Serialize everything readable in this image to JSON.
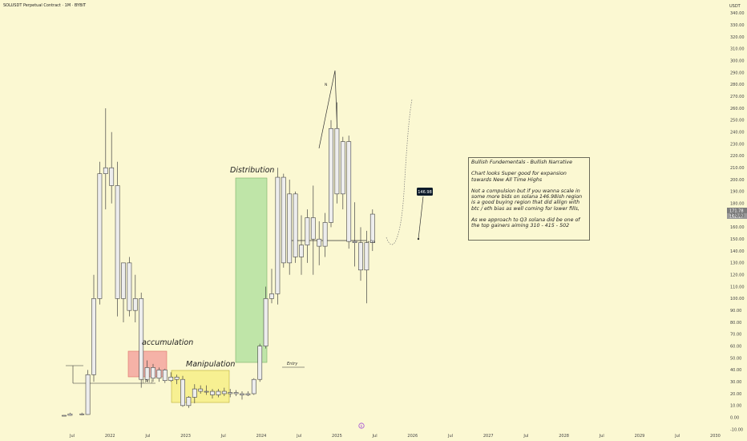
{
  "header": {
    "title": "SOLUSDT Perpetual Contract · 1M · BYBIT",
    "currency": "USDT"
  },
  "annotations": {
    "accumulation": "accumulation",
    "manipulation": "Manipulation",
    "distribution": "Distribution",
    "entry": "Entry",
    "prl": "[ Prl ]",
    "ob": "+Ob",
    "price_badge": "146.98",
    "n_label": "N"
  },
  "note": {
    "line1": "Bullish Fundementals - Bullish Narrative",
    "line2": "Chart looks Super good for expansion towards New All Time Highs",
    "line3": "Not a compulsion but if you wanna scale in some more bids on solana 146.98ish region is a good buying region that did allign with btc / eth bias as well coming for lower fills,",
    "line4": "As we approach to Q3 solana did be one of the top gainers aiming 310 - 415 - 502"
  },
  "colors": {
    "background": "#fbf8d2",
    "accumulation_box": "#f4a6a0",
    "manipulation_box": "#f7f08f",
    "distribution_box": "#b9e3a4",
    "candle": "#ececec"
  },
  "chart_data": {
    "type": "candlestick",
    "y_ticks": [
      -10,
      0,
      10,
      20,
      30,
      40,
      50,
      60,
      70,
      80,
      90,
      100,
      110,
      120,
      130,
      140,
      150,
      160,
      170,
      180,
      190,
      200,
      210,
      220,
      230,
      240,
      250,
      260,
      270,
      280,
      290,
      300,
      310,
      320,
      330,
      340
    ],
    "y_tick_labels": [
      "-10.00",
      "0.00",
      "10.00",
      "20.00",
      "30.00",
      "40.00",
      "50.00",
      "60.00",
      "70.00",
      "80.00",
      "90.00",
      "100.00",
      "110.00",
      "120.00",
      "130.00",
      "140.00",
      "150.00",
      "160.00",
      "170.00",
      "180.00",
      "190.00",
      "200.00",
      "210.00",
      "220.00",
      "230.00",
      "240.00",
      "250.00",
      "260.00",
      "270.00",
      "280.00",
      "290.00",
      "300.00",
      "310.00",
      "320.00",
      "330.00",
      "340.00"
    ],
    "ylim": [
      -10,
      345
    ],
    "x_labels": [
      "Jul",
      "2022",
      "Jul",
      "2023",
      "Jul",
      "2024",
      "Jul",
      "2025",
      "Jul",
      "2026",
      "Jul",
      "2027",
      "Jul",
      "2028",
      "Jul",
      "2029",
      "Jul",
      "2030"
    ],
    "price_scale_labels": [
      "171.78",
      "162.17"
    ],
    "candles": [
      {
        "t": 0,
        "o": 1.2,
        "h": 2.0,
        "l": 1.0,
        "c": 1.8
      },
      {
        "t": 1,
        "o": 1.8,
        "h": 4.0,
        "l": 1.5,
        "c": 3.0
      },
      {
        "t": 3,
        "o": 3.0,
        "h": 4.0,
        "l": 2.0,
        "c": 2.5
      },
      {
        "t": 4,
        "o": 2.5,
        "h": 40.0,
        "l": 2.3,
        "c": 36.0
      },
      {
        "t": 5,
        "o": 36.0,
        "h": 120.0,
        "l": 30.0,
        "c": 100.0
      },
      {
        "t": 6,
        "o": 100.0,
        "h": 215.0,
        "l": 95.0,
        "c": 205.0
      },
      {
        "t": 7,
        "o": 205.0,
        "h": 260.0,
        "l": 175.0,
        "c": 210.0
      },
      {
        "t": 8,
        "o": 210.0,
        "h": 240.0,
        "l": 180.0,
        "c": 195.0
      },
      {
        "t": 9,
        "o": 195.0,
        "h": 215.0,
        "l": 85.0,
        "c": 100.0
      },
      {
        "t": 10,
        "o": 100.0,
        "h": 130.0,
        "l": 80.0,
        "c": 130.0
      },
      {
        "t": 11,
        "o": 130.0,
        "h": 135.0,
        "l": 85.0,
        "c": 90.0
      },
      {
        "t": 12,
        "o": 90.0,
        "h": 120.0,
        "l": 80.0,
        "c": 100.0
      },
      {
        "t": 13,
        "o": 100.0,
        "h": 105.0,
        "l": 25.0,
        "c": 32.0
      },
      {
        "t": 14,
        "o": 32.0,
        "h": 48.0,
        "l": 30.0,
        "c": 42.0
      },
      {
        "t": 15,
        "o": 42.0,
        "h": 45.0,
        "l": 30.0,
        "c": 33.0
      },
      {
        "t": 16,
        "o": 33.0,
        "h": 42.0,
        "l": 30.0,
        "c": 40.0
      },
      {
        "t": 17,
        "o": 40.0,
        "h": 41.0,
        "l": 29.0,
        "c": 31.0
      },
      {
        "t": 18,
        "o": 31.0,
        "h": 38.0,
        "l": 30.0,
        "c": 34.0
      },
      {
        "t": 19,
        "o": 34.0,
        "h": 36.0,
        "l": 28.0,
        "c": 32.0
      },
      {
        "t": 20,
        "o": 32.0,
        "h": 35.0,
        "l": 9.0,
        "c": 10.0
      },
      {
        "t": 21,
        "o": 10.0,
        "h": 18.0,
        "l": 8.0,
        "c": 17.0
      },
      {
        "t": 22,
        "o": 17.0,
        "h": 28.0,
        "l": 12.0,
        "c": 24.0
      },
      {
        "t": 23,
        "o": 24.0,
        "h": 27.0,
        "l": 20.0,
        "c": 22.0
      },
      {
        "t": 24,
        "o": 22.0,
        "h": 27.0,
        "l": 19.0,
        "c": 22.0
      },
      {
        "t": 25,
        "o": 22.0,
        "h": 24.0,
        "l": 16.0,
        "c": 19.0
      },
      {
        "t": 26,
        "o": 19.0,
        "h": 24.0,
        "l": 17.0,
        "c": 22.0
      },
      {
        "t": 27,
        "o": 22.0,
        "h": 25.0,
        "l": 18.0,
        "c": 20.0
      },
      {
        "t": 28,
        "o": 20.0,
        "h": 24.0,
        "l": 17.0,
        "c": 21.0
      },
      {
        "t": 29,
        "o": 21.0,
        "h": 23.0,
        "l": 18.0,
        "c": 20.0
      },
      {
        "t": 30,
        "o": 20.0,
        "h": 22.0,
        "l": 15.0,
        "c": 19.0
      },
      {
        "t": 31,
        "o": 19.0,
        "h": 22.0,
        "l": 18.0,
        "c": 20.0
      },
      {
        "t": 32,
        "o": 20.0,
        "h": 33.0,
        "l": 19.0,
        "c": 32.0
      },
      {
        "t": 33,
        "o": 32.0,
        "h": 62.0,
        "l": 30.0,
        "c": 60.0
      },
      {
        "t": 34,
        "o": 60.0,
        "h": 110.0,
        "l": 58.0,
        "c": 100.0
      },
      {
        "t": 35,
        "o": 100.0,
        "h": 125.0,
        "l": 96.0,
        "c": 104.0
      },
      {
        "t": 36,
        "o": 104.0,
        "h": 210.0,
        "l": 95.0,
        "c": 202.0
      },
      {
        "t": 37,
        "o": 202.0,
        "h": 205.0,
        "l": 126.0,
        "c": 130.0
      },
      {
        "t": 38,
        "o": 130.0,
        "h": 200.0,
        "l": 120.0,
        "c": 188.0
      },
      {
        "t": 39,
        "o": 188.0,
        "h": 190.0,
        "l": 130.0,
        "c": 135.0
      },
      {
        "t": 40,
        "o": 135.0,
        "h": 170.0,
        "l": 120.0,
        "c": 145.0
      },
      {
        "t": 41,
        "o": 145.0,
        "h": 175.0,
        "l": 130.0,
        "c": 168.0
      },
      {
        "t": 42,
        "o": 168.0,
        "h": 195.0,
        "l": 120.0,
        "c": 150.0
      },
      {
        "t": 43,
        "o": 150.0,
        "h": 165.0,
        "l": 128.0,
        "c": 144.0
      },
      {
        "t": 44,
        "o": 144.0,
        "h": 172.0,
        "l": 135.0,
        "c": 164.0
      },
      {
        "t": 45,
        "o": 164.0,
        "h": 250.0,
        "l": 160.0,
        "c": 243.0
      },
      {
        "t": 46,
        "o": 243.0,
        "h": 265.0,
        "l": 180.0,
        "c": 188.0
      },
      {
        "t": 47,
        "o": 188.0,
        "h": 236.0,
        "l": 175.0,
        "c": 232.0
      },
      {
        "t": 48,
        "o": 232.0,
        "h": 237.0,
        "l": 142.0,
        "c": 148.0
      },
      {
        "t": 49,
        "o": 148.0,
        "h": 181.0,
        "l": 127.0,
        "c": 147.0
      },
      {
        "t": 50,
        "o": 147.0,
        "h": 160.0,
        "l": 115.0,
        "c": 124.0
      },
      {
        "t": 51,
        "o": 124.0,
        "h": 157.0,
        "l": 96.0,
        "c": 147.0
      },
      {
        "t": 52,
        "o": 147.0,
        "h": 175.0,
        "l": 140.0,
        "c": 171.0
      }
    ]
  }
}
